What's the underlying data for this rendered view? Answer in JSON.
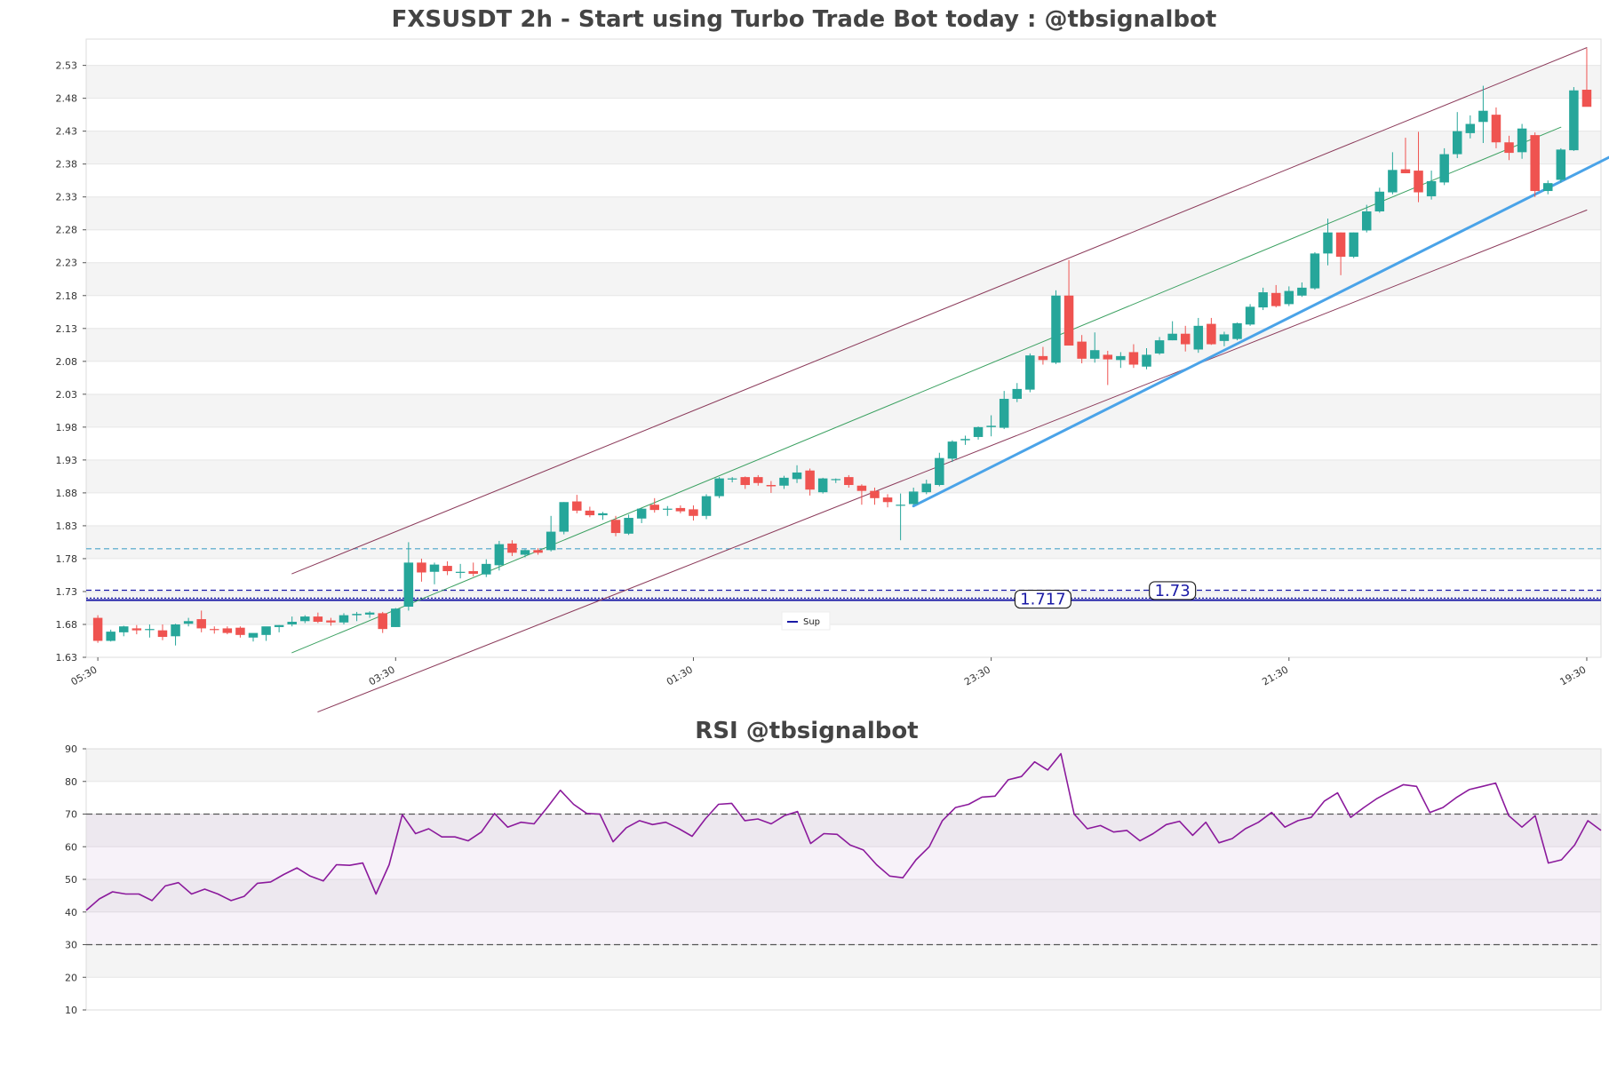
{
  "chart_data": [
    {
      "type": "candlestick",
      "title": "FXSUSDT 2h - Start using Turbo Trade Bot today : @tbsignalbot",
      "ylim": [
        1.63,
        2.57
      ],
      "yticks": [
        1.63,
        1.68,
        1.73,
        1.78,
        1.83,
        1.88,
        1.93,
        1.98,
        2.03,
        2.08,
        2.13,
        2.18,
        2.23,
        2.28,
        2.33,
        2.38,
        2.43,
        2.48,
        2.53
      ],
      "ytick_labels": [
        "1.63",
        "1.68",
        "1.73",
        "1.78",
        "1.83",
        "1.88",
        "1.93",
        "1.98",
        "2.03",
        "2.08",
        "2.13",
        "2.18",
        "2.23",
        "2.28",
        "2.33",
        "2.38",
        "2.43",
        "2.48",
        "2.53"
      ],
      "x_ticks": [
        {
          "index": 0,
          "label": "05:30"
        },
        {
          "index": 23,
          "label": "03:30"
        },
        {
          "index": 46,
          "label": "01:30"
        },
        {
          "index": 69,
          "label": "23:30"
        },
        {
          "index": 92,
          "label": "21:30"
        },
        {
          "index": 115,
          "label": "19:30"
        }
      ],
      "candles": [
        [
          1.69,
          1.694,
          1.652,
          1.655
        ],
        [
          1.655,
          1.672,
          1.654,
          1.669
        ],
        [
          1.668,
          1.678,
          1.662,
          1.677
        ],
        [
          1.674,
          1.679,
          1.665,
          1.671
        ],
        [
          1.672,
          1.68,
          1.66,
          1.673
        ],
        [
          1.671,
          1.68,
          1.656,
          1.661
        ],
        [
          1.662,
          1.681,
          1.648,
          1.68
        ],
        [
          1.681,
          1.69,
          1.677,
          1.685
        ],
        [
          1.688,
          1.701,
          1.668,
          1.674
        ],
        [
          1.673,
          1.677,
          1.666,
          1.672
        ],
        [
          1.674,
          1.677,
          1.665,
          1.667
        ],
        [
          1.675,
          1.677,
          1.66,
          1.664
        ],
        [
          1.66,
          1.666,
          1.654,
          1.667
        ],
        [
          1.664,
          1.676,
          1.655,
          1.677
        ],
        [
          1.676,
          1.679,
          1.668,
          1.679
        ],
        [
          1.68,
          1.692,
          1.677,
          1.684
        ],
        [
          1.685,
          1.694,
          1.682,
          1.692
        ],
        [
          1.692,
          1.698,
          1.682,
          1.684
        ],
        [
          1.686,
          1.69,
          1.678,
          1.683
        ],
        [
          1.683,
          1.697,
          1.68,
          1.694
        ],
        [
          1.694,
          1.699,
          1.685,
          1.696
        ],
        [
          1.695,
          1.7,
          1.69,
          1.698
        ],
        [
          1.697,
          1.699,
          1.667,
          1.673
        ],
        [
          1.676,
          1.705,
          1.676,
          1.704
        ],
        [
          1.707,
          1.805,
          1.701,
          1.774
        ],
        [
          1.774,
          1.78,
          1.745,
          1.759
        ],
        [
          1.76,
          1.774,
          1.741,
          1.771
        ],
        [
          1.769,
          1.776,
          1.755,
          1.761
        ],
        [
          1.759,
          1.772,
          1.75,
          1.76
        ],
        [
          1.761,
          1.774,
          1.753,
          1.757
        ],
        [
          1.756,
          1.779,
          1.752,
          1.772
        ],
        [
          1.77,
          1.807,
          1.762,
          1.802
        ],
        [
          1.803,
          1.808,
          1.784,
          1.789
        ],
        [
          1.786,
          1.794,
          1.782,
          1.793
        ],
        [
          1.793,
          1.796,
          1.786,
          1.789
        ],
        [
          1.793,
          1.845,
          1.791,
          1.821
        ],
        [
          1.821,
          1.866,
          1.817,
          1.866
        ],
        [
          1.867,
          1.877,
          1.849,
          1.853
        ],
        [
          1.853,
          1.859,
          1.843,
          1.846
        ],
        [
          1.846,
          1.851,
          1.839,
          1.849
        ],
        [
          1.839,
          1.845,
          1.814,
          1.819
        ],
        [
          1.818,
          1.847,
          1.816,
          1.842
        ],
        [
          1.841,
          1.857,
          1.834,
          1.856
        ],
        [
          1.862,
          1.872,
          1.85,
          1.854
        ],
        [
          1.856,
          1.86,
          1.845,
          1.856
        ],
        [
          1.857,
          1.861,
          1.849,
          1.852
        ],
        [
          1.855,
          1.861,
          1.838,
          1.845
        ],
        [
          1.845,
          1.878,
          1.84,
          1.875
        ],
        [
          1.875,
          1.904,
          1.872,
          1.902
        ],
        [
          1.902,
          1.904,
          1.896,
          1.902
        ],
        [
          1.904,
          1.905,
          1.886,
          1.892
        ],
        [
          1.904,
          1.907,
          1.891,
          1.895
        ],
        [
          1.892,
          1.898,
          1.88,
          1.89
        ],
        [
          1.891,
          1.906,
          1.886,
          1.903
        ],
        [
          1.901,
          1.922,
          1.895,
          1.911
        ],
        [
          1.914,
          1.917,
          1.876,
          1.885
        ],
        [
          1.881,
          1.903,
          1.879,
          1.902
        ],
        [
          1.9,
          1.902,
          1.895,
          1.901
        ],
        [
          1.904,
          1.907,
          1.888,
          1.892
        ],
        [
          1.891,
          1.893,
          1.862,
          1.883
        ],
        [
          1.883,
          1.888,
          1.862,
          1.872
        ],
        [
          1.873,
          1.878,
          1.858,
          1.866
        ],
        [
          1.862,
          1.879,
          1.808,
          1.862
        ],
        [
          1.863,
          1.888,
          1.862,
          1.882
        ],
        [
          1.881,
          1.9,
          1.878,
          1.894
        ],
        [
          1.892,
          1.941,
          1.89,
          1.933
        ],
        [
          1.932,
          1.96,
          1.927,
          1.958
        ],
        [
          1.96,
          1.967,
          1.953,
          1.962
        ],
        [
          1.965,
          1.981,
          1.961,
          1.98
        ],
        [
          1.98,
          1.998,
          1.966,
          1.982
        ],
        [
          1.979,
          2.035,
          1.977,
          2.023
        ],
        [
          2.023,
          2.047,
          2.018,
          2.038
        ],
        [
          2.037,
          2.092,
          2.033,
          2.089
        ],
        [
          2.088,
          2.102,
          2.075,
          2.082
        ],
        [
          2.078,
          2.188,
          2.076,
          2.18
        ],
        [
          2.18,
          2.234,
          2.107,
          2.104
        ],
        [
          2.11,
          2.12,
          2.077,
          2.084
        ],
        [
          2.084,
          2.124,
          2.078,
          2.097
        ],
        [
          2.09,
          2.096,
          2.044,
          2.083
        ],
        [
          2.082,
          2.094,
          2.07,
          2.088
        ],
        [
          2.094,
          2.106,
          2.07,
          2.075
        ],
        [
          2.072,
          2.1,
          2.068,
          2.09
        ],
        [
          2.092,
          2.117,
          2.09,
          2.112
        ],
        [
          2.112,
          2.141,
          2.112,
          2.122
        ],
        [
          2.122,
          2.134,
          2.095,
          2.106
        ],
        [
          2.098,
          2.146,
          2.093,
          2.134
        ],
        [
          2.137,
          2.146,
          2.105,
          2.106
        ],
        [
          2.111,
          2.125,
          2.103,
          2.121
        ],
        [
          2.114,
          2.139,
          2.112,
          2.138
        ],
        [
          2.136,
          2.167,
          2.134,
          2.163
        ],
        [
          2.162,
          2.192,
          2.158,
          2.185
        ],
        [
          2.184,
          2.196,
          2.162,
          2.164
        ],
        [
          2.167,
          2.194,
          2.164,
          2.187
        ],
        [
          2.18,
          2.2,
          2.178,
          2.192
        ],
        [
          2.191,
          2.246,
          2.189,
          2.244
        ],
        [
          2.244,
          2.297,
          2.226,
          2.276
        ],
        [
          2.276,
          2.276,
          2.211,
          2.239
        ],
        [
          2.239,
          2.276,
          2.237,
          2.276
        ],
        [
          2.279,
          2.318,
          2.276,
          2.308
        ],
        [
          2.308,
          2.344,
          2.306,
          2.338
        ],
        [
          2.337,
          2.398,
          2.334,
          2.371
        ],
        [
          2.372,
          2.42,
          2.366,
          2.366
        ],
        [
          2.37,
          2.429,
          2.322,
          2.337
        ],
        [
          2.331,
          2.37,
          2.326,
          2.354
        ],
        [
          2.352,
          2.404,
          2.348,
          2.395
        ],
        [
          2.395,
          2.459,
          2.389,
          2.43
        ],
        [
          2.427,
          2.454,
          2.419,
          2.441
        ],
        [
          2.444,
          2.499,
          2.412,
          2.461
        ],
        [
          2.455,
          2.466,
          2.404,
          2.413
        ],
        [
          2.413,
          2.423,
          2.386,
          2.397
        ],
        [
          2.398,
          2.441,
          2.388,
          2.434
        ],
        [
          2.424,
          2.428,
          2.33,
          2.339
        ],
        [
          2.339,
          2.355,
          2.334,
          2.351
        ],
        [
          2.356,
          2.404,
          2.352,
          2.402
        ],
        [
          2.401,
          2.497,
          2.4,
          2.492
        ],
        [
          2.493,
          2.556,
          2.469,
          2.467
        ]
      ],
      "hlines": [
        {
          "value": 1.795,
          "style": "dashed",
          "color": "#4aa3c9"
        },
        {
          "value": 1.732,
          "style": "dashed",
          "color": "#1a1aa6"
        },
        {
          "value": 1.72,
          "style": "dotted",
          "color": "#1a1aa6"
        },
        {
          "value": 1.717,
          "style": "solid",
          "color": "#1a1aa6"
        }
      ],
      "level_labels": [
        {
          "value": 1.717,
          "text": "1.717",
          "at_index": 73
        },
        {
          "value": 1.73,
          "text": "1.73",
          "at_index": 83
        }
      ],
      "trendlines": [
        {
          "from": [
            15,
            1.757
          ],
          "to": [
            115,
            2.557
          ],
          "color": "#8b3a5a",
          "width": 1
        },
        {
          "from": [
            17,
            1.547
          ],
          "to": [
            115,
            2.31
          ],
          "color": "#8b3a5a",
          "width": 1
        },
        {
          "from": [
            15,
            1.637
          ],
          "to": [
            113,
            2.436
          ],
          "color": "#3aa060",
          "width": 1
        },
        {
          "from": [
            63,
            1.86
          ],
          "to": [
            117,
            2.393
          ],
          "color": "#4aa3e8",
          "width": 3
        }
      ],
      "legend": [
        {
          "label": "Sup",
          "color": "#1a1aa6"
        }
      ],
      "candle_colors": {
        "up": "#26a69a",
        "down": "#ef5350"
      }
    },
    {
      "type": "line",
      "title": "RSI @tbsignalbot",
      "ylim": [
        10,
        90
      ],
      "yticks": [
        10,
        20,
        30,
        40,
        50,
        60,
        70,
        80,
        90
      ],
      "ytick_labels": [
        "10",
        "20",
        "30",
        "40",
        "50",
        "60",
        "70",
        "80",
        "90"
      ],
      "overbought": 70,
      "oversold": 30,
      "line_color": "#8b1a9c",
      "values": [
        40.5,
        44,
        46.2,
        45.5,
        45.5,
        43.5,
        48,
        49,
        45.5,
        47,
        45.5,
        43.5,
        44.8,
        48.8,
        49.2,
        51.5,
        53.5,
        51,
        49.5,
        54.5,
        54.3,
        55,
        45.5,
        54.5,
        69.8,
        64,
        65.5,
        63,
        63,
        61.8,
        64.5,
        70.2,
        66,
        67.5,
        67,
        72,
        77.3,
        73,
        70.2,
        70,
        61.5,
        65.8,
        68,
        66.8,
        67.5,
        65.5,
        63.2,
        68.5,
        73,
        73.3,
        68,
        68.5,
        67,
        69.5,
        70.8,
        61,
        64,
        63.8,
        60.5,
        59,
        54.5,
        51,
        50.5,
        56,
        60,
        68,
        72,
        73,
        75.2,
        75.5,
        80.5,
        81.5,
        86,
        83.5,
        88.5,
        70,
        65.5,
        66.5,
        64.5,
        65,
        61.8,
        64,
        66.8,
        67.8,
        63.5,
        67.5,
        61.2,
        62.5,
        65.5,
        67.5,
        70.5,
        66,
        68,
        69,
        74,
        76.5,
        69,
        72,
        74.8,
        77,
        79,
        78.5,
        70.5,
        72,
        75,
        77.5,
        78.5,
        79.5,
        69.5,
        66,
        69.5,
        55,
        56,
        60.5,
        68,
        65
      ]
    }
  ]
}
